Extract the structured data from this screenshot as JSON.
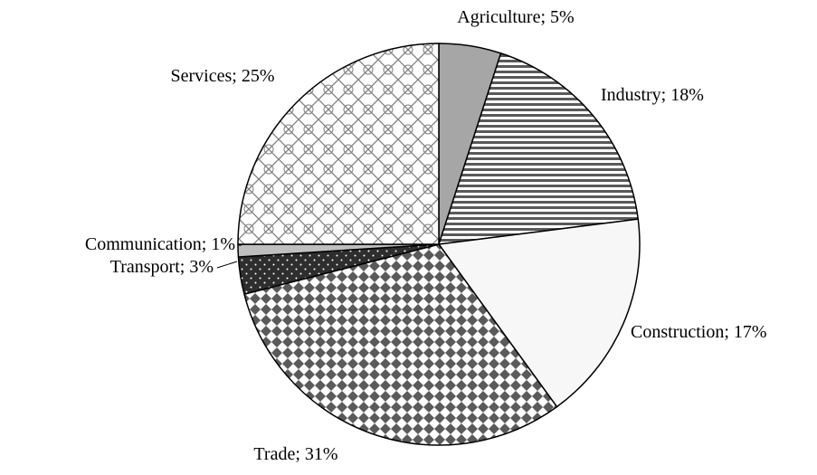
{
  "chart_data": {
    "type": "pie",
    "categories": [
      "Agriculture",
      "Industry",
      "Construction",
      "Trade",
      "Transport",
      "Communication",
      "Services"
    ],
    "values": [
      5,
      18,
      17,
      31,
      3,
      1,
      25
    ],
    "value_labels": [
      "5%",
      "18%",
      "17%",
      "31%",
      "3%",
      "1%",
      "25%"
    ],
    "separator": "; ",
    "colors": [
      "#a6a6a6",
      "#595959",
      "#f7f7f7",
      "#5a5a5a",
      "#2e2e2e",
      "#bfbfbf",
      "#7f7f7f"
    ],
    "patterns": [
      "solid",
      "stripes",
      "solid",
      "diamonds",
      "dots",
      "solid",
      "lattice"
    ]
  }
}
